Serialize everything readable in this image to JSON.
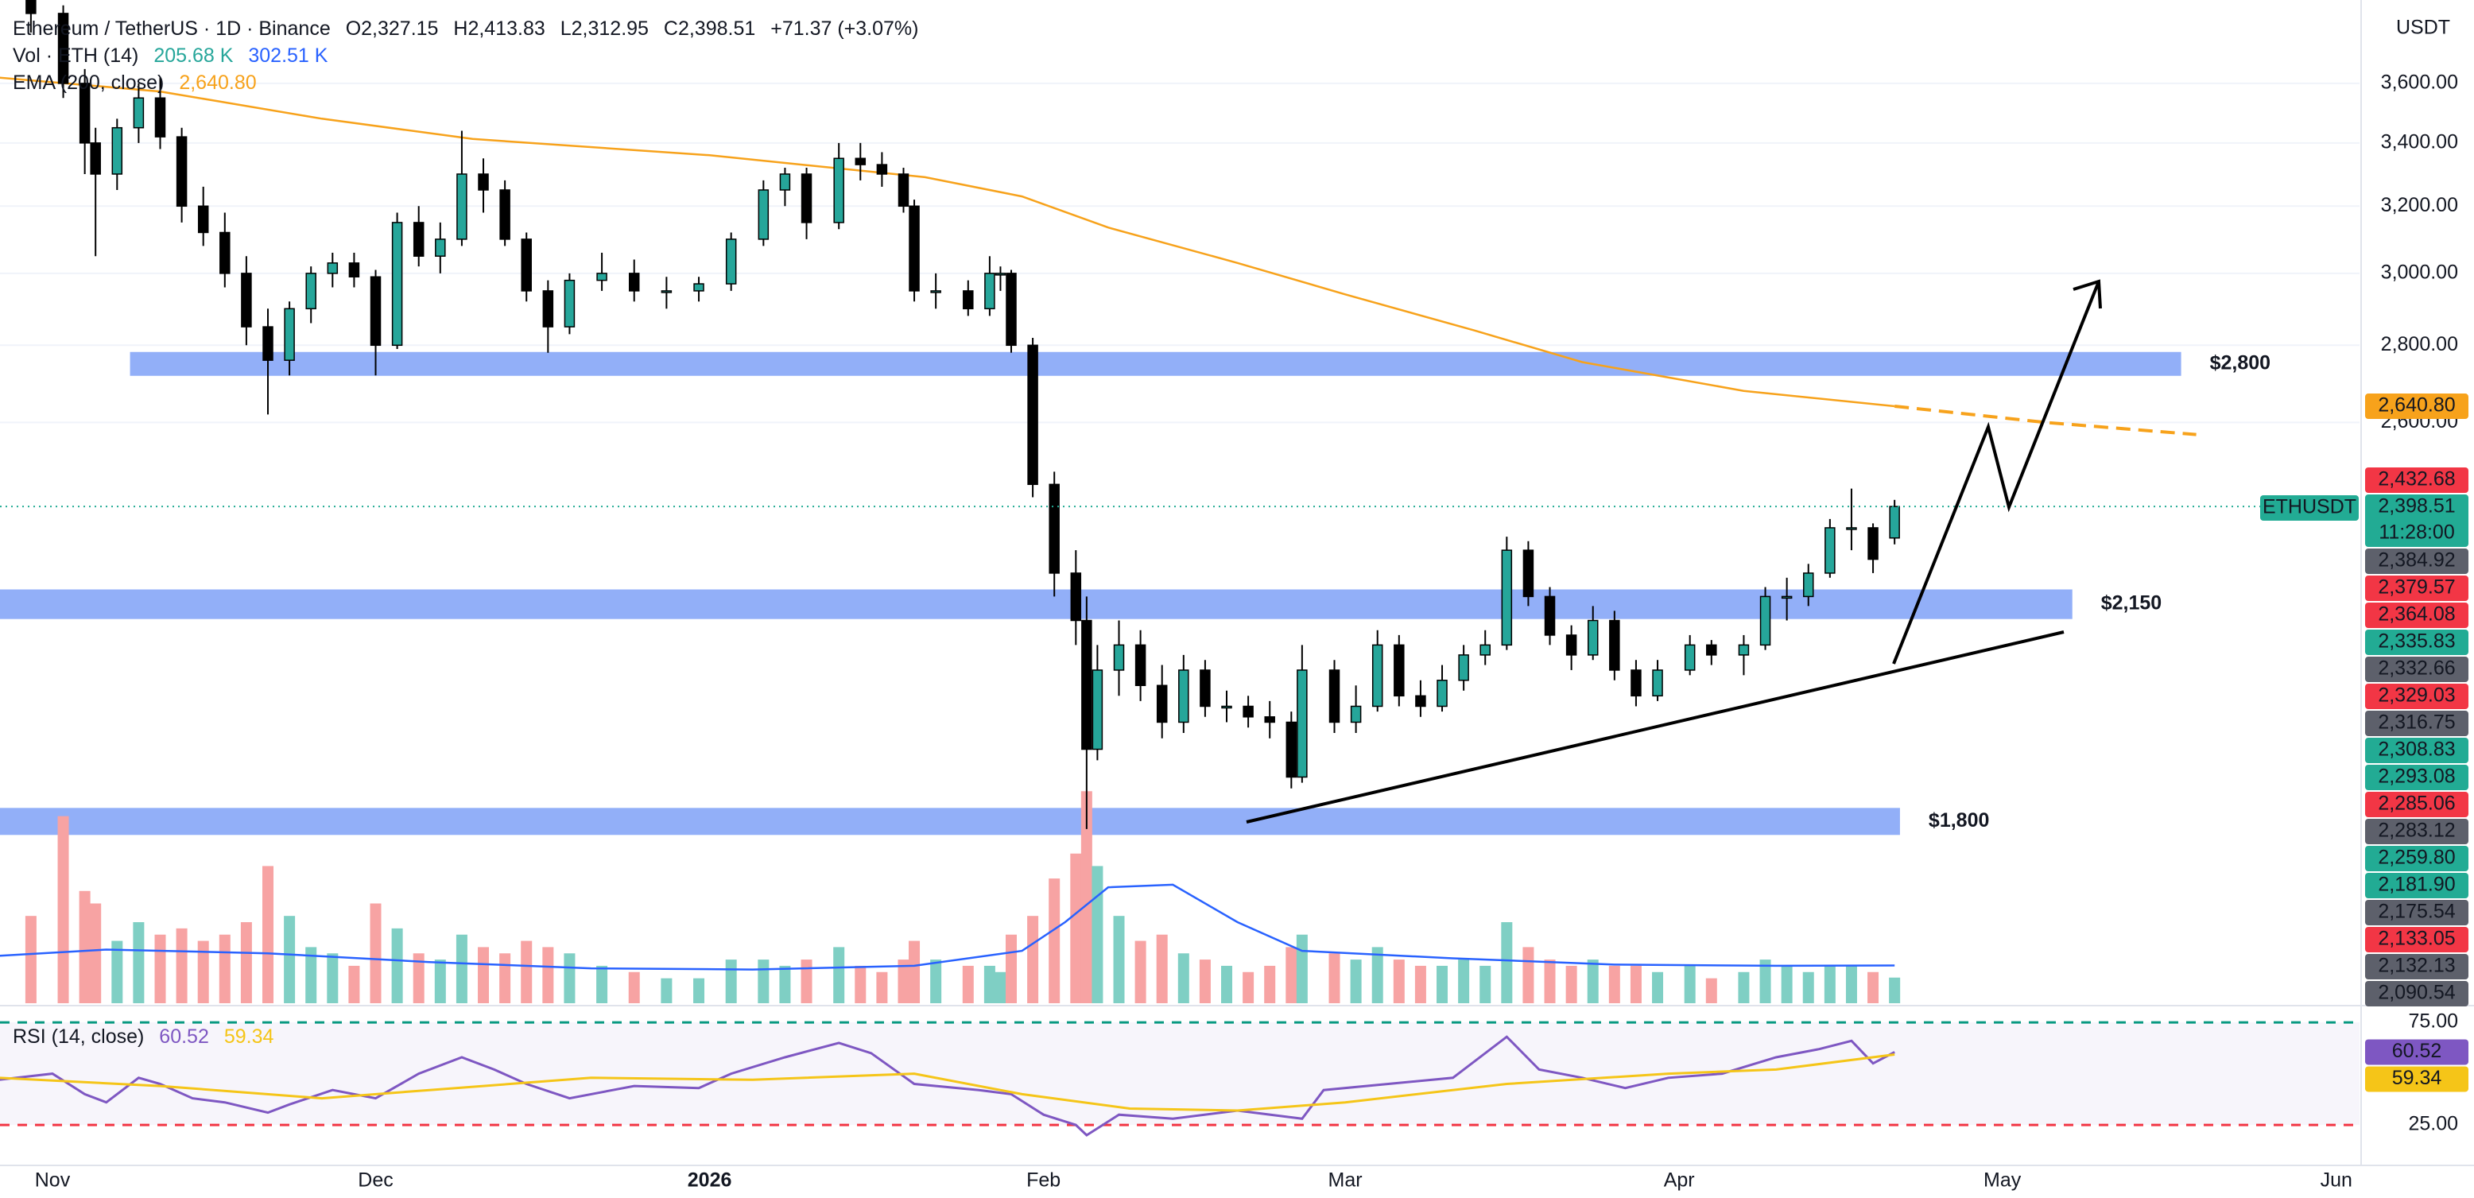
{
  "chart_data": {
    "type": "candlestick",
    "header": {
      "symbol": "Ethereum / TetherUS · 1D · Binance",
      "ohlc": [
        "O2,327.15",
        "H2,413.83",
        "L2,312.95",
        "C2,398.51",
        "+71.37 (+3.07%)"
      ]
    },
    "unit": "USDT",
    "log_scale": true,
    "grid": true,
    "xlim": [
      -4.87,
      214.16
    ],
    "xticks": [
      {
        "value": 0,
        "label": "Nov"
      },
      {
        "value": 30,
        "label": "Dec"
      },
      {
        "value": 61,
        "label": "2026",
        "bold": true
      },
      {
        "value": 92,
        "label": "Feb"
      },
      {
        "value": 120,
        "label": "Mar"
      },
      {
        "value": 151,
        "label": "Apr"
      },
      {
        "value": 181,
        "label": "May"
      },
      {
        "value": 212,
        "label": "Jun"
      }
    ],
    "ylim": [
      1489,
      3900
    ],
    "yticks": [
      {
        "value": 3600,
        "label": "3,600.00"
      },
      {
        "value": 3400,
        "label": "3,400.00"
      },
      {
        "value": 3200,
        "label": "3,200.00"
      },
      {
        "value": 3000,
        "label": "3,000.00"
      },
      {
        "value": 2800,
        "label": "2,800.00"
      },
      {
        "value": 2600,
        "label": "2,600.00"
      }
    ],
    "candles": {
      "up_color": "#26a69a",
      "down_color": "#000000",
      "x": [
        -2,
        1,
        3,
        4,
        6,
        8,
        10,
        12,
        14,
        16,
        18,
        20,
        22,
        24,
        26,
        28,
        30,
        32,
        34,
        36,
        38,
        40,
        42,
        44,
        46,
        48,
        51,
        54,
        57,
        60,
        63,
        66,
        68,
        70,
        73,
        75,
        77,
        79,
        80,
        82,
        85,
        87,
        88,
        89,
        91,
        93,
        95,
        96,
        97,
        99,
        101,
        103,
        105,
        107,
        109,
        111,
        113,
        115,
        116,
        119,
        121,
        123,
        125,
        127,
        129,
        131,
        133,
        135,
        137,
        139,
        141,
        143,
        145,
        147,
        149,
        152,
        154,
        157,
        159,
        161,
        163,
        165,
        167,
        169,
        171
      ],
      "open": [
        3900,
        3850,
        3600,
        3400,
        3300,
        3450,
        3550,
        3420,
        3200,
        3120,
        3000,
        2850,
        2760,
        2900,
        3000,
        3030,
        2990,
        2800,
        3150,
        3050,
        3100,
        3300,
        3250,
        3100,
        2950,
        2850,
        2980,
        3000,
        2950,
        2950,
        2970,
        3100,
        3250,
        3300,
        3150,
        3350,
        3330,
        3300,
        3200,
        2950,
        2950,
        2900,
        3000,
        3000,
        2800,
        2450,
        2250,
        2150,
        1900,
        2050,
        2100,
        2020,
        1950,
        2050,
        1980,
        1980,
        1960,
        1950,
        1850,
        2050,
        1950,
        1980,
        2100,
        2000,
        1980,
        2030,
        2080,
        2100,
        2300,
        2200,
        2120,
        2080,
        2150,
        2050,
        2000,
        2050,
        2100,
        2080,
        2100,
        2200,
        2200,
        2250,
        2350,
        2350,
        2327.15
      ],
      "high": [
        3950,
        3880,
        3650,
        3450,
        3480,
        3600,
        3620,
        3450,
        3260,
        3180,
        3050,
        2900,
        2920,
        3020,
        3060,
        3060,
        3010,
        3180,
        3200,
        3150,
        3440,
        3350,
        3280,
        3120,
        2980,
        3000,
        3060,
        3040,
        2990,
        2990,
        3120,
        3280,
        3320,
        3320,
        3400,
        3400,
        3370,
        3320,
        3220,
        3000,
        2980,
        3050,
        3020,
        3010,
        2820,
        2480,
        2300,
        2200,
        2100,
        2150,
        2130,
        2060,
        2080,
        2070,
        2010,
        2000,
        1990,
        1970,
        2100,
        2070,
        2020,
        2130,
        2120,
        2030,
        2060,
        2100,
        2130,
        2330,
        2320,
        2220,
        2140,
        2180,
        2170,
        2070,
        2070,
        2120,
        2110,
        2120,
        2220,
        2240,
        2270,
        2370,
        2440,
        2360,
        2413.83
      ],
      "low": [
        3780,
        3550,
        3300,
        3050,
        3250,
        3400,
        3380,
        3150,
        3080,
        2960,
        2800,
        2620,
        2720,
        2860,
        2960,
        2960,
        2720,
        2790,
        3020,
        3000,
        3080,
        3180,
        3080,
        2920,
        2780,
        2830,
        2950,
        2920,
        2900,
        2920,
        2950,
        3080,
        3200,
        3100,
        3130,
        3280,
        3260,
        3180,
        2920,
        2900,
        2880,
        2880,
        2950,
        2780,
        2420,
        2200,
        2100,
        1760,
        1880,
        2000,
        1990,
        1920,
        1930,
        1960,
        1950,
        1940,
        1920,
        1830,
        1840,
        1930,
        1930,
        1970,
        1980,
        1960,
        1970,
        2010,
        2060,
        2090,
        2180,
        2100,
        2050,
        2070,
        2030,
        1980,
        1990,
        2040,
        2060,
        2040,
        2090,
        2150,
        2180,
        2240,
        2300,
        2250,
        2312.95
      ],
      "close": [
        3850,
        3600,
        3400,
        3300,
        3450,
        3550,
        3420,
        3200,
        3120,
        3000,
        2850,
        2760,
        2900,
        3000,
        3030,
        2990,
        2800,
        3150,
        3050,
        3100,
        3300,
        3250,
        3100,
        2950,
        2850,
        2980,
        3000,
        2950,
        2950,
        2970,
        3100,
        3250,
        3300,
        3150,
        3350,
        3330,
        3300,
        3200,
        2950,
        2950,
        2900,
        3000,
        3000,
        2800,
        2450,
        2250,
        2150,
        1900,
        2050,
        2100,
        2020,
        1950,
        2050,
        1980,
        1980,
        1960,
        1950,
        1850,
        2050,
        1950,
        1980,
        2100,
        2000,
        1980,
        2030,
        2080,
        2100,
        2300,
        2200,
        2120,
        2080,
        2150,
        2050,
        2000,
        2050,
        2100,
        2080,
        2100,
        2200,
        2200,
        2250,
        2350,
        2350,
        2280,
        2398.51
      ]
    },
    "volume": {
      "name": "Vol · ETH (14)",
      "value_label": "205.68 K",
      "ylim": [
        0,
        2900
      ],
      "up_color": "#7fcfc4",
      "down_color": "#f7a3a3",
      "values": [
        700,
        1500,
        900,
        800,
        500,
        650,
        550,
        600,
        500,
        550,
        650,
        1100,
        700,
        450,
        400,
        300,
        800,
        600,
        400,
        350,
        550,
        450,
        400,
        500,
        450,
        400,
        300,
        250,
        200,
        200,
        350,
        350,
        300,
        350,
        450,
        300,
        250,
        350,
        500,
        350,
        300,
        300,
        250,
        550,
        700,
        1000,
        1200,
        1700,
        1100,
        700,
        500,
        550,
        400,
        350,
        300,
        250,
        300,
        450,
        550,
        400,
        350,
        450,
        350,
        300,
        300,
        350,
        300,
        650,
        450,
        350,
        300,
        350,
        300,
        300,
        250,
        300,
        200,
        250,
        350,
        300,
        250,
        300,
        300,
        250,
        205.68
      ],
      "ma": {
        "value_label": "302.51 K",
        "color": "#2962ff",
        "x": [
          -5,
          5,
          20,
          35,
          50,
          65,
          80,
          90,
          94,
          98,
          104,
          110,
          116,
          130,
          145,
          160,
          171
        ],
        "values": [
          380,
          430,
          400,
          330,
          280,
          270,
          300,
          420,
          650,
          930,
          950,
          650,
          420,
          360,
          310,
          300,
          302.51
        ]
      }
    },
    "ema": {
      "name": "EMA (200, close)",
      "value_label": "2,640.80",
      "color": "#f7a21b",
      "x": [
        -5,
        10,
        25,
        39,
        61,
        81,
        90,
        98,
        110,
        120,
        132,
        142,
        157,
        171
      ],
      "values": [
        3620,
        3572,
        3480,
        3413,
        3360,
        3290,
        3230,
        3135,
        3030,
        2940,
        2840,
        2755,
        2680,
        2640.8
      ],
      "projection": {
        "x": [
          171,
          185,
          199
        ],
        "values": [
          2640.8,
          2600,
          2570
        ]
      }
    },
    "zones": [
      {
        "label": "$2,800",
        "from": 7.2,
        "to": 197.6,
        "low": 2719,
        "high": 2782,
        "color": "#86a6f7"
      },
      {
        "label": "$2,150",
        "from": -4.87,
        "to": 187.5,
        "low": 2153,
        "high": 2215,
        "color": "#86a6f7"
      },
      {
        "label": "$1,800",
        "from": -4.87,
        "to": 171.5,
        "low": 1750,
        "high": 1796,
        "color": "#86a6f7"
      }
    ],
    "current": {
      "symbol": "ETHUSDT",
      "price": "2,398.51",
      "countdown": "11:28:00",
      "color": "#22ab94"
    },
    "price_labels": [
      {
        "label": "2,432.68",
        "color": "#f23645"
      },
      {
        "label": "2,384.92",
        "color": "#5d606b"
      },
      {
        "label": "2,379.57",
        "color": "#f23645"
      },
      {
        "label": "2,364.08",
        "color": "#f23645"
      },
      {
        "label": "2,335.83",
        "color": "#22ab94"
      },
      {
        "label": "2,332.66",
        "color": "#5d606b"
      },
      {
        "label": "2,329.03",
        "color": "#f23645"
      },
      {
        "label": "2,316.75",
        "color": "#5d606b"
      },
      {
        "label": "2,308.83",
        "color": "#22ab94"
      },
      {
        "label": "2,293.08",
        "color": "#22ab94"
      },
      {
        "label": "2,285.06",
        "color": "#f23645"
      },
      {
        "label": "2,283.12",
        "color": "#5d606b"
      },
      {
        "label": "2,259.80",
        "color": "#22ab94"
      },
      {
        "label": "2,181.90",
        "color": "#22ab94"
      },
      {
        "label": "2,175.54",
        "color": "#5d606b"
      },
      {
        "label": "2,133.05",
        "color": "#f23645"
      },
      {
        "label": "2,132.13",
        "color": "#5d606b"
      },
      {
        "label": "2,090.54",
        "color": "#5d606b"
      }
    ],
    "rsi": {
      "name": "RSI (14, close)",
      "value_label": "60.52",
      "color": "#7e57c2",
      "ylim": [
        7.2,
        82.8
      ],
      "yticks": [
        {
          "value": 75,
          "label": "75.00"
        },
        {
          "value": 25,
          "label": "25.00"
        }
      ],
      "x": [
        -5,
        0,
        3,
        5,
        8,
        10,
        13,
        16,
        20,
        22,
        26,
        30,
        34,
        38,
        41,
        44,
        48,
        54,
        60,
        63,
        68,
        73,
        76,
        80,
        86,
        89,
        92,
        95,
        96,
        99,
        104,
        110,
        116,
        118,
        124,
        130,
        135,
        138,
        142,
        146,
        150,
        155,
        160,
        164,
        167,
        169,
        171
      ],
      "values": [
        47,
        50,
        40,
        36,
        48,
        45,
        38,
        36,
        31,
        35,
        42,
        38,
        50,
        58,
        52,
        45,
        38,
        44,
        43,
        50,
        58,
        65,
        60,
        45,
        42,
        40,
        30,
        25,
        20,
        30,
        28,
        32,
        28,
        42,
        45,
        48,
        68,
        52,
        48,
        43,
        48,
        50,
        58,
        62,
        66,
        55,
        60.52
      ],
      "ma": {
        "value_label": "59.34",
        "color": "#f5c518",
        "x": [
          -5,
          10,
          25,
          35,
          50,
          65,
          80,
          90,
          100,
          110,
          120,
          135,
          150,
          160,
          171
        ],
        "values": [
          48,
          44,
          38,
          42,
          48,
          47,
          50,
          40,
          33,
          32,
          36,
          45,
          50,
          52,
          59.34
        ]
      }
    }
  }
}
